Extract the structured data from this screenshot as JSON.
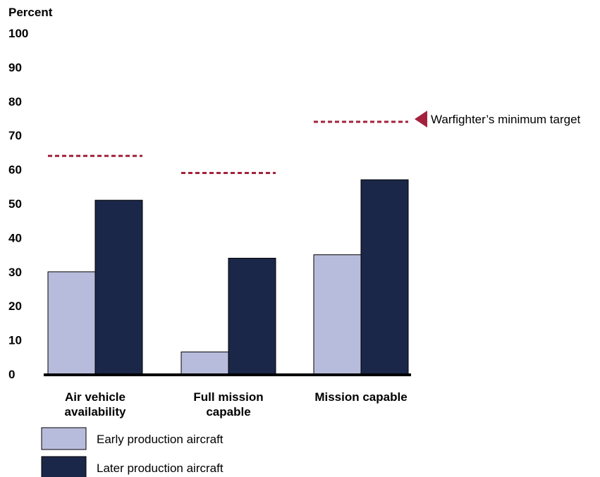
{
  "colors": {
    "early": "#b8bcdc",
    "later": "#1a2748",
    "target": "#a3213c",
    "axis": "#000000"
  },
  "chart_data": {
    "type": "bar",
    "ylabel": "Percent",
    "ylim": [
      0,
      100
    ],
    "yticks": [
      "0",
      "10",
      "20",
      "30",
      "40",
      "50",
      "60",
      "70",
      "80",
      "90",
      "100"
    ],
    "categories": [
      [
        "Air vehicle",
        "availability"
      ],
      [
        "Full mission",
        "capable"
      ],
      [
        "Mission capable"
      ]
    ],
    "series": [
      {
        "name": "Early production aircraft",
        "values": [
          30,
          6.5,
          35
        ]
      },
      {
        "name": "Later production aircraft",
        "values": [
          51,
          34,
          57
        ]
      }
    ],
    "targets": [
      64,
      59,
      74
    ],
    "target_label": "Warfighter’s minimum target",
    "grid": false,
    "legend": "bottom-left"
  }
}
